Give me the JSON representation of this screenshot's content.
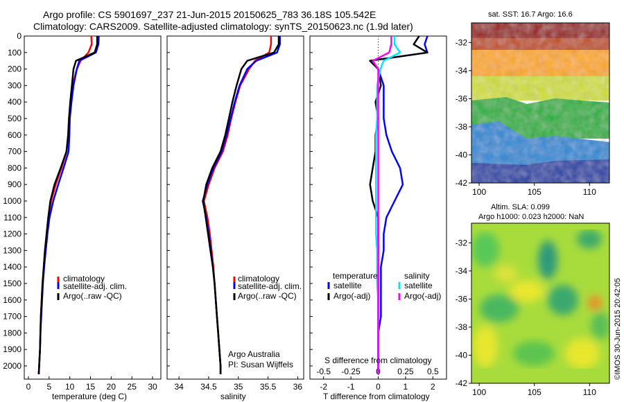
{
  "header": {
    "title_line1": "Argo profile: CS 5901697_237 21-Jun-2015 20150625_783 36.18S 105.542E",
    "title_line2": "Climatology: CARS2009. Satellite-adjusted climatology: synTS_20150623.nc (1.9d later)"
  },
  "colors": {
    "climatology": "#ff0000",
    "satellite": "#0000ff",
    "argo": "#000000",
    "satellite_s": "#00e5ff",
    "argo_s": "#ff00ff",
    "frame": "#000000"
  },
  "legend_labels": {
    "climatology": "climatology",
    "satellite_adj": "satellite-adj. clim.",
    "argo_raw": "Argo(..raw -QC)",
    "temperature": "temperature",
    "salinity": "salinity",
    "satellite": "satellite",
    "argo_adj": "Argo(-adj)"
  },
  "annotations": {
    "argo_australia": "Argo Australia",
    "pi": "PI: Susan Wijffels",
    "s_diff_label": "S difference from climatology",
    "imos_stamp": "©IMOS 30-Jun-2015 20:42:05"
  },
  "maps": {
    "sst_title": "sat. SST: 16.7 Argo: 16.6",
    "sla_title_line1": "Altim. SLA: 0.099",
    "sla_title_line2": "Argo h1000: 0.023 h2000: NaN",
    "lat_ticks": [
      "-32",
      "-34",
      "-36",
      "-38",
      "-40",
      "-42"
    ],
    "lon_ticks": [
      "100",
      "105",
      "110"
    ],
    "sst_colors": [
      "#990000",
      "#e05a00",
      "#ffaa00",
      "#c8e02c",
      "#22b838",
      "#1e8cd8",
      "#0a2aa0"
    ],
    "sla_colors": [
      "#2a9a78",
      "#4ec850",
      "#bde040",
      "#e8e62e",
      "#f09030"
    ]
  },
  "chart_data": [
    {
      "type": "line",
      "xlabel": "temperature (deg C)",
      "ylabel": "",
      "xlim": [
        -1,
        32
      ],
      "ylim": [
        2080,
        0
      ],
      "xticks": [
        0,
        5,
        10,
        15,
        20,
        25,
        30
      ],
      "yticks": [
        0,
        100,
        200,
        300,
        400,
        500,
        600,
        700,
        800,
        900,
        1000,
        1100,
        1200,
        1300,
        1400,
        1500,
        1600,
        1700,
        1800,
        1900,
        2000
      ],
      "y": [
        0,
        50,
        100,
        150,
        200,
        300,
        400,
        500,
        600,
        700,
        800,
        900,
        1000,
        1100,
        1200,
        1300,
        1400,
        1500,
        1600,
        1700,
        1800,
        1900,
        2000,
        2050
      ],
      "series": [
        {
          "name": "climatology",
          "color": "#ff0000",
          "values": [
            15.2,
            15.3,
            14.5,
            12.6,
            11.7,
            10.7,
            10.2,
            9.8,
            9.6,
            9.2,
            8.0,
            6.6,
            5.5,
            4.8,
            4.4,
            4.0,
            3.7,
            3.4,
            3.2,
            3.0,
            2.9,
            2.8,
            2.6,
            2.5
          ]
        },
        {
          "name": "satellite-adj. clim.",
          "color": "#0000ff",
          "values": [
            17.0,
            16.9,
            16.3,
            12.3,
            11.7,
            10.9,
            10.4,
            10.0,
            9.9,
            9.7,
            8.5,
            7.2,
            6.0,
            5.1,
            4.6,
            4.2,
            3.8,
            3.5,
            3.3,
            3.1,
            2.9,
            2.8,
            2.6,
            2.5
          ]
        },
        {
          "name": "Argo(..raw -QC)",
          "color": "#000000",
          "values": [
            16.6,
            16.6,
            16.0,
            11.5,
            10.9,
            10.5,
            10.1,
            9.8,
            9.6,
            9.2,
            7.8,
            6.3,
            5.3,
            4.8,
            4.4,
            4.0,
            3.7,
            3.4,
            3.2,
            3.0,
            2.9,
            2.8,
            2.6,
            2.5
          ]
        }
      ],
      "legend_position": "lower-center"
    },
    {
      "type": "line",
      "xlabel": "salinity",
      "ylabel": "",
      "xlim": [
        33.8,
        36.1
      ],
      "ylim": [
        2080,
        0
      ],
      "xticks": [
        34,
        34.5,
        35,
        35.5,
        36
      ],
      "xtick_labels": [
        "34",
        "34.5",
        "35",
        "35.5",
        "36"
      ],
      "y": [
        0,
        50,
        100,
        150,
        200,
        300,
        400,
        500,
        600,
        700,
        800,
        900,
        1000,
        1100,
        1200,
        1300,
        1400,
        1500,
        1600,
        1700,
        1800,
        1900,
        2000,
        2050
      ],
      "series": [
        {
          "name": "climatology",
          "color": "#ff0000",
          "values": [
            35.55,
            35.55,
            35.52,
            35.28,
            35.18,
            35.03,
            34.95,
            34.88,
            34.82,
            34.74,
            34.6,
            34.5,
            34.42,
            34.48,
            34.52,
            34.55,
            34.58,
            34.6,
            34.62,
            34.64,
            34.66,
            34.68,
            34.7,
            34.7
          ]
        },
        {
          "name": "satellite-adj. clim.",
          "color": "#0000ff",
          "values": [
            35.7,
            35.7,
            35.65,
            35.3,
            35.15,
            35.02,
            34.94,
            34.87,
            34.8,
            34.72,
            34.58,
            34.48,
            34.4,
            34.46,
            34.5,
            34.54,
            34.57,
            34.6,
            34.62,
            34.64,
            34.66,
            34.68,
            34.7,
            34.7
          ]
        },
        {
          "name": "Argo(..raw -QC)",
          "color": "#000000",
          "values": [
            35.68,
            35.68,
            35.6,
            35.15,
            35.05,
            34.97,
            34.9,
            34.84,
            34.78,
            34.7,
            34.56,
            34.46,
            34.41,
            34.45,
            34.49,
            34.53,
            34.57,
            34.6,
            34.62,
            34.64,
            34.66,
            34.68,
            34.7,
            34.7
          ]
        }
      ],
      "annotations": [
        "Argo Australia",
        "PI: Susan Wijffels"
      ],
      "legend_position": "lower-center"
    },
    {
      "type": "line",
      "xlabel": "T difference from climatology",
      "x2label": "S difference from climatology",
      "xlim": [
        -2.5,
        2.5
      ],
      "ylim": [
        2080,
        0
      ],
      "xticks": [
        -2,
        -1,
        0,
        1,
        2
      ],
      "x2ticks": [
        -0.5,
        -0.25,
        0,
        0.25,
        0.5
      ],
      "x2tick_labels": [
        "-0.5",
        "-0.25",
        "0",
        "0.25",
        "0.5"
      ],
      "y": [
        0,
        50,
        100,
        150,
        200,
        300,
        400,
        500,
        600,
        700,
        800,
        900,
        1000,
        1100,
        1200,
        1300,
        1400,
        1500,
        1600,
        1700,
        1800,
        1900,
        2000,
        2050
      ],
      "series": [
        {
          "name": "temperature satellite",
          "color": "#0000ff",
          "values": [
            1.8,
            1.7,
            1.8,
            -0.3,
            0,
            0.2,
            0.2,
            0.2,
            0.3,
            0.5,
            0.8,
            0.9,
            0.6,
            0.3,
            0.2,
            0.2,
            0.1,
            0.1,
            0.1,
            0.1,
            0,
            0,
            0,
            0
          ]
        },
        {
          "name": "temperature Argo(-adj)",
          "color": "#000000",
          "values": [
            1.5,
            1.3,
            1.8,
            -0.3,
            0,
            0.1,
            -0.1,
            0,
            -0.1,
            -0.1,
            -0.2,
            -0.3,
            -0.2,
            0,
            0,
            0,
            0,
            0,
            0,
            0,
            0,
            0,
            0,
            0
          ]
        },
        {
          "name": "salinity satellite",
          "color": "#00e5ff",
          "values": [
            0.15,
            0.15,
            0.2,
            0.05,
            0.02,
            -0.01,
            -0.01,
            -0.01,
            -0.02,
            -0.02,
            -0.02,
            -0.02,
            -0.02,
            -0.02,
            -0.02,
            -0.01,
            -0.01,
            -0.01,
            0,
            0,
            0,
            0,
            0,
            0
          ]
        },
        {
          "name": "salinity Argo(-adj)",
          "color": "#ff00ff",
          "values": [
            0.12,
            0.12,
            0.1,
            -0.05,
            0,
            0,
            0,
            0,
            0,
            0,
            0,
            0,
            0,
            0,
            0,
            0,
            0,
            0,
            0,
            0,
            0,
            0,
            0,
            0
          ]
        }
      ],
      "legend_position": "lower-center"
    }
  ]
}
